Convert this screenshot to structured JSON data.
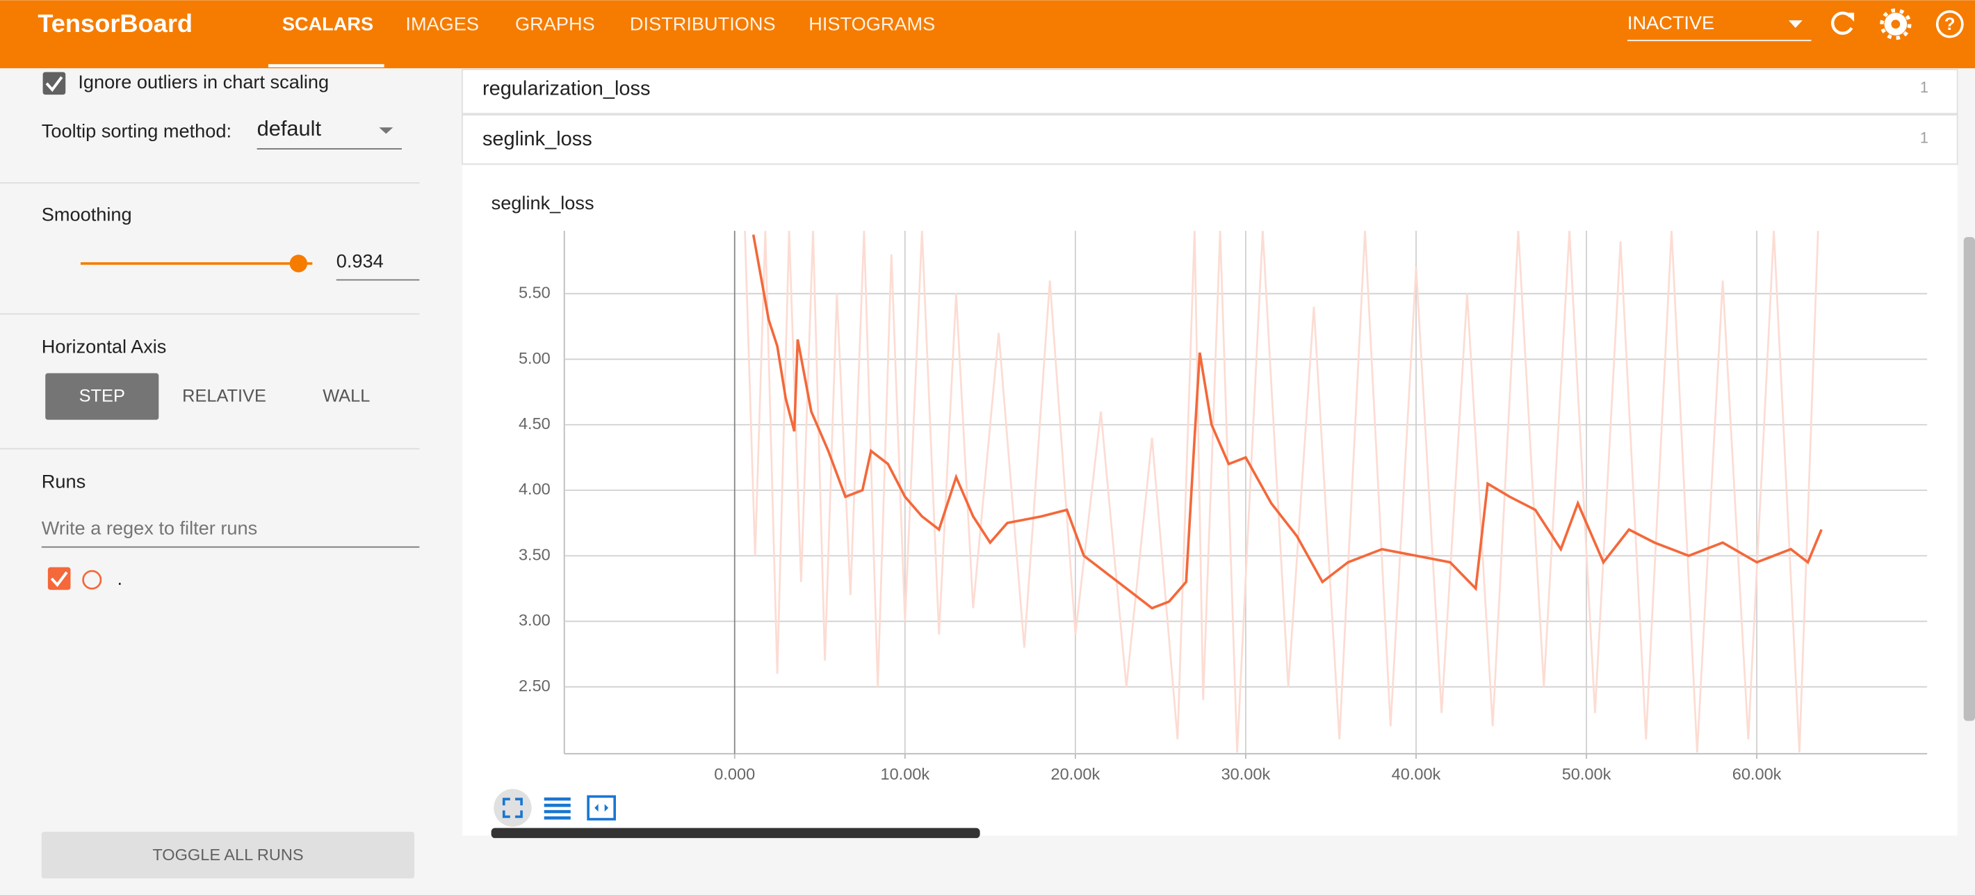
{
  "header": {
    "title": "TensorBoard",
    "tabs": [
      "SCALARS",
      "IMAGES",
      "GRAPHS",
      "DISTRIBUTIONS",
      "HISTOGRAMS"
    ],
    "status": "INACTIVE"
  },
  "sidebar": {
    "ignore_outliers": "Ignore outliers in chart scaling",
    "tooltip_label": "Tooltip sorting method:",
    "tooltip_value": "default",
    "smoothing_label": "Smoothing",
    "smoothing_value": "0.934",
    "axis_label": "Horizontal Axis",
    "axis_options": [
      "STEP",
      "RELATIVE",
      "WALL"
    ],
    "runs_label": "Runs",
    "runs_filter": "Write a regex to filter runs",
    "run_name": ".",
    "toggle_button": "TOGGLE ALL RUNS"
  },
  "panels": [
    {
      "name": "regularization_loss",
      "count": "1"
    },
    {
      "name": "seglink_loss",
      "count": "1"
    }
  ],
  "chart_data": {
    "type": "line",
    "title": "seglink_loss",
    "xlim": [
      -10000,
      70000
    ],
    "ylim": [
      1.99,
      5.98
    ],
    "xticks": [
      {
        "value": 0,
        "label": "0.000"
      },
      {
        "value": 10000,
        "label": "10.00k"
      },
      {
        "value": 20000,
        "label": "20.00k"
      },
      {
        "value": 30000,
        "label": "30.00k"
      },
      {
        "value": 40000,
        "label": "40.00k"
      },
      {
        "value": 50000,
        "label": "50.00k"
      },
      {
        "value": 60000,
        "label": "60.00k"
      }
    ],
    "yticks": [
      {
        "value": 2.5,
        "label": "2.50"
      },
      {
        "value": 3,
        "label": "3.00"
      },
      {
        "value": 3.5,
        "label": "3.50"
      },
      {
        "value": 4,
        "label": "4.00"
      },
      {
        "value": 4.5,
        "label": "4.50"
      },
      {
        "value": 5,
        "label": "5.00"
      },
      {
        "value": 5.5,
        "label": "5.50"
      }
    ],
    "grid": true,
    "raw_series": {
      "color": "#fcdcd3",
      "x": [
        600,
        1200,
        1800,
        2500,
        3200,
        3900,
        4600,
        5300,
        6000,
        6800,
        7600,
        8400,
        9200,
        10000,
        11000,
        12000,
        13000,
        14000,
        15500,
        17000,
        18500,
        20000,
        21500,
        23000,
        24500,
        26000,
        27000,
        27500,
        28500,
        29500,
        31000,
        32500,
        34000,
        35500,
        37000,
        38500,
        40000,
        41500,
        43000,
        44500,
        46000,
        47500,
        49000,
        50500,
        52000,
        53500,
        55000,
        56500,
        58000,
        59500,
        61000,
        62500,
        63600
      ],
      "values": [
        5.98,
        3.5,
        5.98,
        2.6,
        5.98,
        3.3,
        5.98,
        2.7,
        5.5,
        3.2,
        5.98,
        2.5,
        5.8,
        3.0,
        5.98,
        2.9,
        5.5,
        3.1,
        5.2,
        2.8,
        5.6,
        2.9,
        4.6,
        2.5,
        4.4,
        2.1,
        5.98,
        2.4,
        5.98,
        2.0,
        5.98,
        2.5,
        5.4,
        2.1,
        5.98,
        2.2,
        5.7,
        2.3,
        5.5,
        2.2,
        5.98,
        2.5,
        5.98,
        2.3,
        5.9,
        2.1,
        5.98,
        2.0,
        5.6,
        2.1,
        5.98,
        2.0,
        5.98
      ]
    },
    "series": [
      {
        "name": ".",
        "color": "#f4683a",
        "x": [
          1100,
          2000,
          2500,
          3000,
          3500,
          3700,
          4500,
          5500,
          6500,
          7500,
          8000,
          9000,
          10000,
          11000,
          12000,
          13000,
          14000,
          15000,
          16000,
          18000,
          19500,
          20500,
          22000,
          23000,
          24500,
          25500,
          26500,
          27000,
          27300,
          28000,
          29000,
          30000,
          31500,
          33000,
          34500,
          36000,
          38000,
          40000,
          42000,
          43500,
          44200,
          45500,
          47000,
          48500,
          49500,
          51000,
          52500,
          54000,
          56000,
          58000,
          60000,
          62000,
          63000,
          63800
        ],
        "values": [
          5.95,
          5.3,
          5.1,
          4.7,
          4.45,
          5.15,
          4.6,
          4.3,
          3.95,
          4.0,
          4.3,
          4.2,
          3.95,
          3.8,
          3.7,
          4.1,
          3.8,
          3.6,
          3.75,
          3.8,
          3.85,
          3.5,
          3.35,
          3.25,
          3.1,
          3.15,
          3.3,
          4.4,
          5.05,
          4.5,
          4.2,
          4.25,
          3.9,
          3.65,
          3.3,
          3.45,
          3.55,
          3.5,
          3.45,
          3.25,
          4.05,
          3.95,
          3.85,
          3.55,
          3.9,
          3.45,
          3.7,
          3.6,
          3.5,
          3.6,
          3.45,
          3.55,
          3.45,
          3.7
        ]
      }
    ]
  }
}
